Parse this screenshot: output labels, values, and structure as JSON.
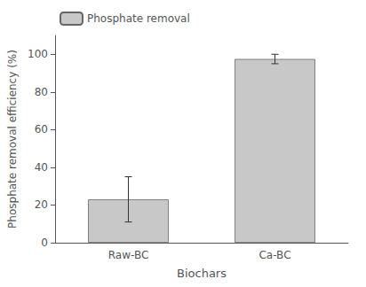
{
  "chart_data": {
    "type": "bar",
    "categories": [
      "Raw-BC",
      "Ca-BC"
    ],
    "series": [
      {
        "name": "Phosphate removal",
        "color": "#c8c8c8",
        "values": [
          23.0,
          97.5
        ],
        "errors": [
          12.0,
          2.5
        ]
      }
    ],
    "xlabel": "Biochars",
    "ylabel": "Phosphate removal efficiency (%)",
    "ylim": [
      0,
      110
    ],
    "yticks": [
      0,
      20,
      40,
      60,
      80,
      100
    ],
    "grid": false,
    "legend": "upper left"
  }
}
